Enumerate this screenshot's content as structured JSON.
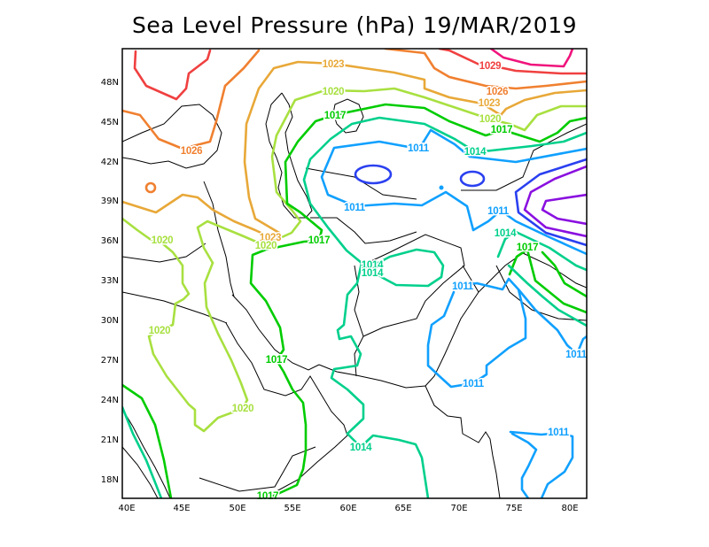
{
  "title": "Sea Level Pressure (hPa) 19/MAR/2019",
  "map": {
    "projection": "lat-lon",
    "lon_range_deg": [
      40,
      80
    ],
    "lat_range_deg": [
      18,
      48
    ],
    "lat_labels": [
      "48N",
      "45N",
      "42N",
      "39N",
      "36N",
      "33N",
      "30N",
      "27N",
      "24N",
      "21N",
      "18N"
    ],
    "lon_labels": [
      "40E",
      "45E",
      "50E",
      "55E",
      "60E",
      "65E",
      "70E",
      "75E",
      "80E"
    ]
  },
  "contour_colors": {
    "1032": "#f0147c",
    "1029": "#f04040",
    "1026": "#f08030",
    "1023": "#e8a838",
    "1020": "#a8e040",
    "1017": "#00cc00",
    "1014": "#00d08c",
    "1011": "#10a0ff",
    "1008": "#2a40f0",
    "1005": "#8a10e0"
  },
  "contour_labels": [
    "1029",
    "1026",
    "1026",
    "1023",
    "1023",
    "1023",
    "1020",
    "1020",
    "1020",
    "1020",
    "1020",
    "1020",
    "1017",
    "1017",
    "1017",
    "1017",
    "1017",
    "1017",
    "1014",
    "1014",
    "1014",
    "1014",
    "1014",
    "1011",
    "1011",
    "1011",
    "1011",
    "1011",
    "1011",
    "1011"
  ]
}
